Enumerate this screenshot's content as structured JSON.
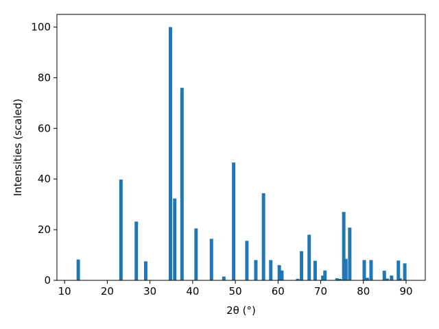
{
  "chart_data": {
    "type": "bar",
    "xlabel": "2θ (°)",
    "ylabel": "Intensities (scaled)",
    "xlim": [
      8.2,
      94.5
    ],
    "ylim": [
      0,
      105
    ],
    "xticks": [
      10,
      20,
      30,
      40,
      50,
      60,
      70,
      80,
      90
    ],
    "yticks": [
      0,
      20,
      40,
      60,
      80,
      100
    ],
    "bar_color": "#1f77b4",
    "bar_width": 0.8,
    "grid": false,
    "points": [
      {
        "x": 13.2,
        "y": 8.2
      },
      {
        "x": 23.2,
        "y": 39.8
      },
      {
        "x": 26.8,
        "y": 23.2
      },
      {
        "x": 29.0,
        "y": 7.5
      },
      {
        "x": 34.8,
        "y": 100
      },
      {
        "x": 35.8,
        "y": 32.3
      },
      {
        "x": 37.5,
        "y": 76.0
      },
      {
        "x": 40.8,
        "y": 20.5
      },
      {
        "x": 44.4,
        "y": 16.4
      },
      {
        "x": 47.3,
        "y": 1.5
      },
      {
        "x": 49.6,
        "y": 46.5
      },
      {
        "x": 52.7,
        "y": 15.6
      },
      {
        "x": 54.8,
        "y": 8.0
      },
      {
        "x": 56.6,
        "y": 34.4
      },
      {
        "x": 58.3,
        "y": 8.0
      },
      {
        "x": 60.3,
        "y": 6.0
      },
      {
        "x": 60.9,
        "y": 3.9
      },
      {
        "x": 64.6,
        "y": 0.6
      },
      {
        "x": 65.5,
        "y": 11.5
      },
      {
        "x": 67.3,
        "y": 18.0
      },
      {
        "x": 68.7,
        "y": 7.7
      },
      {
        "x": 70.5,
        "y": 1.9
      },
      {
        "x": 71.0,
        "y": 3.9
      },
      {
        "x": 73.8,
        "y": 0.8
      },
      {
        "x": 74.5,
        "y": 0.6
      },
      {
        "x": 75.4,
        "y": 27.0
      },
      {
        "x": 75.9,
        "y": 8.5
      },
      {
        "x": 76.8,
        "y": 20.8
      },
      {
        "x": 80.2,
        "y": 8.0
      },
      {
        "x": 80.9,
        "y": 1.0
      },
      {
        "x": 81.8,
        "y": 8.0
      },
      {
        "x": 84.9,
        "y": 3.8
      },
      {
        "x": 85.6,
        "y": 0.7
      },
      {
        "x": 86.6,
        "y": 1.9
      },
      {
        "x": 88.2,
        "y": 7.8
      },
      {
        "x": 88.6,
        "y": 0.8
      },
      {
        "x": 89.7,
        "y": 6.7
      }
    ]
  }
}
